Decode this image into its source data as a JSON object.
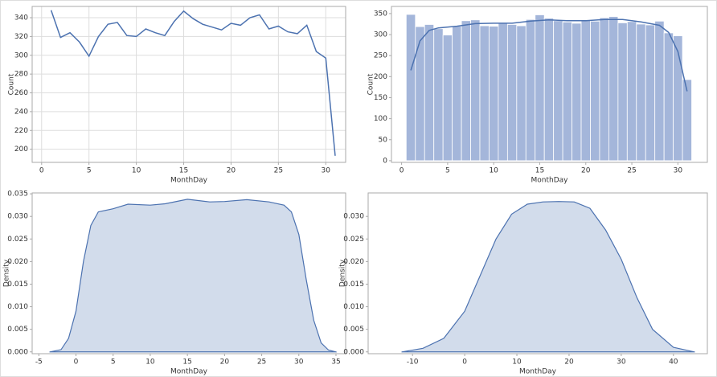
{
  "chart_data": [
    {
      "type": "line",
      "x_label": "MonthDay",
      "y_label": "Count",
      "color": "#4c72b0",
      "grid": true,
      "x": [
        1,
        2,
        3,
        4,
        5,
        6,
        7,
        8,
        9,
        10,
        11,
        12,
        13,
        14,
        15,
        16,
        17,
        18,
        19,
        20,
        21,
        22,
        23,
        24,
        25,
        26,
        27,
        28,
        29,
        30,
        31
      ],
      "values": [
        348,
        319,
        324,
        314,
        299,
        320,
        333,
        335,
        321,
        320,
        328,
        324,
        321,
        336,
        347,
        339,
        333,
        330,
        327,
        334,
        332,
        340,
        343,
        328,
        331,
        325,
        323,
        332,
        304,
        297,
        193
      ],
      "xlim": [
        -1,
        32.1
      ],
      "ylim": [
        186,
        352
      ],
      "xticks": [
        0,
        5,
        10,
        15,
        20,
        25,
        30
      ],
      "yticks": [
        200,
        220,
        240,
        260,
        280,
        300,
        320,
        340
      ]
    },
    {
      "type": "histogram",
      "x_label": "MonthDay",
      "y_label": "Count",
      "color": "#4c72b0",
      "bar_color": "#a4b6da",
      "grid": false,
      "bins": [
        0.5,
        1.5,
        2.5,
        3.5,
        4.5,
        5.5,
        6.5,
        7.5,
        8.5,
        9.5,
        10.5,
        11.5,
        12.5,
        13.5,
        14.5,
        15.5,
        16.5,
        17.5,
        18.5,
        19.5,
        20.5,
        21.5,
        22.5,
        23.5,
        24.5,
        25.5,
        26.5,
        27.5,
        28.5,
        29.5,
        30.5,
        31.5
      ],
      "counts": [
        348,
        319,
        324,
        314,
        299,
        320,
        333,
        335,
        321,
        320,
        328,
        324,
        321,
        336,
        347,
        339,
        333,
        330,
        327,
        334,
        332,
        340,
        343,
        328,
        331,
        325,
        323,
        332,
        304,
        297,
        193
      ],
      "kde": {
        "x": [
          1,
          2,
          3,
          4,
          6,
          8,
          10,
          12,
          14,
          16,
          18,
          20,
          22,
          24,
          26,
          28,
          29,
          30,
          31
        ],
        "values": [
          215,
          285,
          310,
          316,
          320,
          326,
          327,
          327,
          332,
          335,
          333,
          333,
          336,
          336,
          330,
          322,
          305,
          260,
          165
        ]
      },
      "xlim": [
        -1.1,
        33.2
      ],
      "ylim": [
        -4,
        367
      ],
      "xticks": [
        0,
        5,
        10,
        15,
        20,
        25,
        30
      ],
      "yticks": [
        0,
        50,
        100,
        150,
        200,
        250,
        300,
        350
      ]
    },
    {
      "type": "area",
      "x_label": "MonthDay",
      "y_label": "Density",
      "color": "#4c72b0",
      "grid": false,
      "x": [
        -3.5,
        -2,
        -1,
        0,
        1,
        2,
        3,
        5,
        7,
        10,
        12,
        15,
        18,
        20,
        23,
        26,
        28,
        29,
        30,
        31,
        32,
        33,
        34,
        35
      ],
      "values": [
        0,
        0.0005,
        0.003,
        0.009,
        0.02,
        0.028,
        0.031,
        0.0317,
        0.0327,
        0.0325,
        0.0328,
        0.0338,
        0.0332,
        0.0333,
        0.0337,
        0.0332,
        0.0325,
        0.031,
        0.026,
        0.016,
        0.007,
        0.002,
        0.0004,
        0
      ],
      "xlim": [
        -5.9,
        36.3
      ],
      "ylim": [
        -0.0004,
        0.0352
      ],
      "xticks": [
        -5,
        0,
        5,
        10,
        15,
        20,
        25,
        30,
        35
      ],
      "yticks": [
        {
          "value": 0,
          "label": "0.000"
        },
        {
          "value": 0.005,
          "label": "0.005"
        },
        {
          "value": 0.01,
          "label": "0.010"
        },
        {
          "value": 0.015,
          "label": "0.015"
        },
        {
          "value": 0.02,
          "label": "0.020"
        },
        {
          "value": 0.025,
          "label": "0.025"
        },
        {
          "value": 0.03,
          "label": "0.030"
        },
        {
          "value": 0.035,
          "label": "0.035"
        }
      ]
    },
    {
      "type": "area",
      "x_label": "MonthDay",
      "y_label": "Density",
      "color": "#4c72b0",
      "grid": false,
      "x": [
        -12,
        -8,
        -4,
        0,
        3,
        6,
        9,
        12,
        15,
        18,
        21,
        24,
        27,
        30,
        33,
        36,
        40,
        44
      ],
      "values": [
        0,
        0.0008,
        0.003,
        0.009,
        0.017,
        0.025,
        0.0305,
        0.0327,
        0.0332,
        0.0333,
        0.0332,
        0.0318,
        0.027,
        0.0205,
        0.012,
        0.005,
        0.001,
        0
      ],
      "xlim": [
        -18.5,
        46.5
      ],
      "ylim": [
        -0.0004,
        0.0352
      ],
      "xticks": [
        -10,
        0,
        10,
        20,
        30,
        40
      ],
      "yticks": [
        {
          "value": 0,
          "label": "0.000"
        },
        {
          "value": 0.005,
          "label": "0.005"
        },
        {
          "value": 0.01,
          "label": "0.010"
        },
        {
          "value": 0.015,
          "label": "0.015"
        },
        {
          "value": 0.02,
          "label": "0.020"
        },
        {
          "value": 0.025,
          "label": "0.025"
        },
        {
          "value": 0.03,
          "label": "0.030"
        }
      ]
    }
  ]
}
